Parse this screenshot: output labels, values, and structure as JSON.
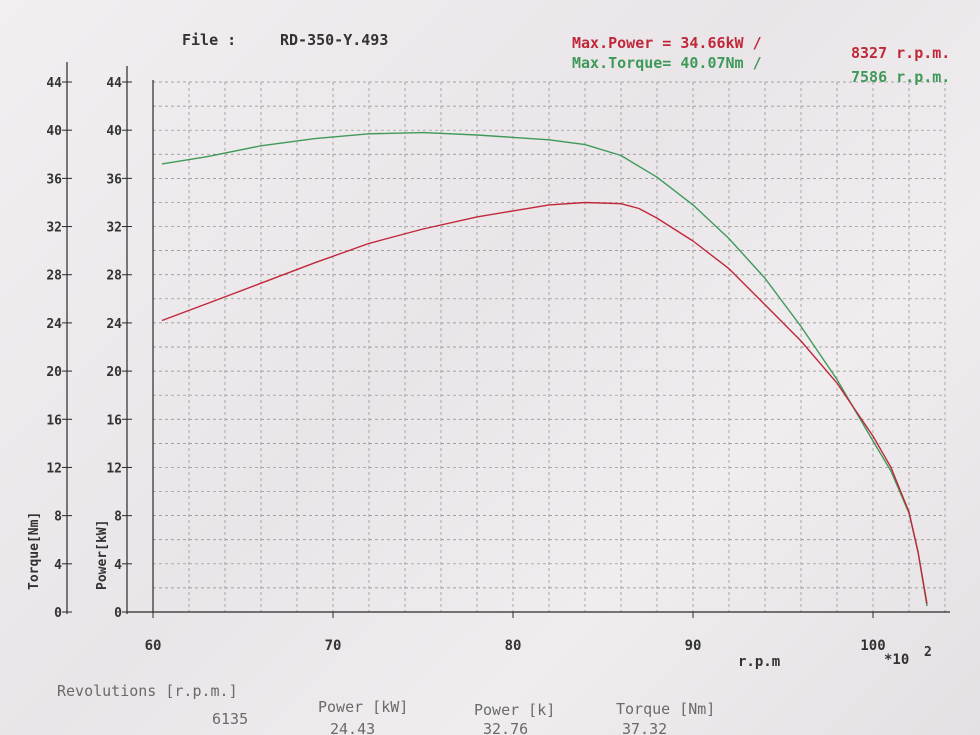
{
  "header": {
    "file_label": "File :",
    "file_name": "RD-350-Y.493",
    "max_power_label": "Max.Power = 34.66kW /",
    "max_power_rpm": "8327 r.p.m.",
    "max_torque_label": "Max.Torque= 40.07Nm /",
    "max_torque_rpm": "7586 r.p.m."
  },
  "axes": {
    "torque_axis_label": "Torque[Nm]",
    "power_axis_label": "Power[kW]",
    "x_unit": "r.p.m",
    "x_multiplier": "*10",
    "x_multiplier_exp": "2"
  },
  "footer": {
    "rev_label": "Revolutions [r.p.m.]",
    "rev_value": "6135",
    "power_label": "Power [kW]",
    "power_value": "24.43",
    "power2_label": "Power [k]",
    "power2_value": "32.76",
    "torque_label": "Torque [Nm]",
    "torque_value": "37.32"
  },
  "colors": {
    "power": "#c0283a",
    "torque": "#3f9a5a",
    "grid": "#8a8a8a",
    "axis": "#2a2a2a"
  },
  "chart_data": {
    "type": "line",
    "x_scale_note": "x axis in r.p.m. x 10^2",
    "xlim": [
      60,
      104
    ],
    "ylim": [
      0,
      44
    ],
    "x_ticks": [
      60,
      70,
      80,
      90,
      100
    ],
    "y_ticks": [
      0,
      4,
      8,
      12,
      16,
      20,
      24,
      28,
      32,
      36,
      40,
      44
    ],
    "xlabel": "r.p.m",
    "ylabel_left": "Torque[Nm]",
    "ylabel_right": "Power[kW]",
    "grid": true,
    "series": [
      {
        "name": "Torque[Nm]",
        "color_key": "torque",
        "x": [
          60.5,
          63,
          66,
          69,
          72,
          75,
          78,
          80,
          82,
          84,
          86,
          88,
          90,
          92,
          94,
          96,
          98,
          100,
          101,
          102,
          102.5,
          103
        ],
        "y": [
          37.2,
          37.8,
          38.7,
          39.3,
          39.7,
          39.8,
          39.6,
          39.4,
          39.2,
          38.8,
          37.9,
          36.1,
          33.8,
          31.0,
          27.7,
          23.7,
          19.3,
          14.2,
          11.7,
          8.2,
          5.0,
          0.5
        ]
      },
      {
        "name": "Power[kW]",
        "color_key": "power",
        "x": [
          60.5,
          63,
          66,
          69,
          72,
          75,
          78,
          80,
          82,
          84,
          86,
          87,
          88,
          90,
          92,
          94,
          96,
          98,
          100,
          101,
          102,
          102.5,
          103
        ],
        "y": [
          24.2,
          25.6,
          27.3,
          29.0,
          30.6,
          31.8,
          32.8,
          33.3,
          33.8,
          34.0,
          33.9,
          33.5,
          32.7,
          30.8,
          28.5,
          25.5,
          22.5,
          19.0,
          14.6,
          12.0,
          8.3,
          5.0,
          0.7
        ]
      }
    ]
  }
}
